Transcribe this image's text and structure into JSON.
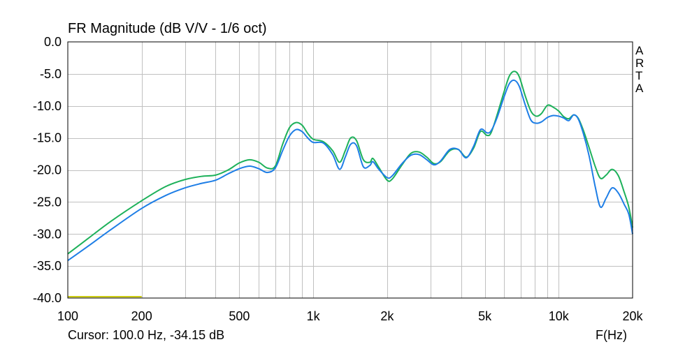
{
  "window": {
    "brand_letters": [
      "A",
      "R",
      "T",
      "A"
    ]
  },
  "cursor_readout": "Cursor: 100.0 Hz, -34.15 dB",
  "chart_data": {
    "type": "line",
    "title": "FR Magnitude (dB V/V - 1/6 oct)",
    "xlabel": "F(Hz)",
    "ylabel": "",
    "xscale": "log",
    "xlim": [
      100,
      20000
    ],
    "ylim": [
      -40,
      0
    ],
    "grid": true,
    "x_ticks": [
      {
        "value": 100,
        "label": "100"
      },
      {
        "value": 200,
        "label": "200"
      },
      {
        "value": 500,
        "label": "500"
      },
      {
        "value": 1000,
        "label": "1k"
      },
      {
        "value": 2000,
        "label": "2k"
      },
      {
        "value": 5000,
        "label": "5k"
      },
      {
        "value": 10000,
        "label": "10k"
      },
      {
        "value": 20000,
        "label": "20k"
      }
    ],
    "y_ticks": [
      {
        "value": 0,
        "label": "0.0"
      },
      {
        "value": -5,
        "label": "-5.0"
      },
      {
        "value": -10,
        "label": "-10.0"
      },
      {
        "value": -15,
        "label": "-15.0"
      },
      {
        "value": -20,
        "label": "-20.0"
      },
      {
        "value": -25,
        "label": "-25.0"
      },
      {
        "value": -30,
        "label": "-30.0"
      },
      {
        "value": -35,
        "label": "-35.0"
      },
      {
        "value": -40,
        "label": "-40.0"
      }
    ],
    "colors": {
      "grid": "#c0c0c0",
      "frame": "#000000",
      "green": "#1db15a",
      "blue": "#1e7ee6",
      "marker": "#c8c800"
    },
    "series": [
      {
        "color": "#1db15a",
        "points": [
          [
            100,
            -33.1
          ],
          [
            120,
            -30.8
          ],
          [
            150,
            -28.0
          ],
          [
            200,
            -24.8
          ],
          [
            250,
            -22.6
          ],
          [
            300,
            -21.5
          ],
          [
            350,
            -21.0
          ],
          [
            400,
            -20.8
          ],
          [
            450,
            -20.0
          ],
          [
            500,
            -18.9
          ],
          [
            550,
            -18.4
          ],
          [
            600,
            -18.8
          ],
          [
            650,
            -19.7
          ],
          [
            700,
            -19.4
          ],
          [
            750,
            -16.0
          ],
          [
            800,
            -13.4
          ],
          [
            850,
            -12.6
          ],
          [
            900,
            -13.0
          ],
          [
            950,
            -14.3
          ],
          [
            1000,
            -15.2
          ],
          [
            1100,
            -15.6
          ],
          [
            1200,
            -17.0
          ],
          [
            1280,
            -18.8
          ],
          [
            1350,
            -17.0
          ],
          [
            1420,
            -15.0
          ],
          [
            1500,
            -15.4
          ],
          [
            1600,
            -18.4
          ],
          [
            1700,
            -18.8
          ],
          [
            1750,
            -18.2
          ],
          [
            1850,
            -19.6
          ],
          [
            2000,
            -21.6
          ],
          [
            2100,
            -21.4
          ],
          [
            2300,
            -19.2
          ],
          [
            2500,
            -17.4
          ],
          [
            2700,
            -17.2
          ],
          [
            2900,
            -18.0
          ],
          [
            3100,
            -19.0
          ],
          [
            3300,
            -18.7
          ],
          [
            3600,
            -17.0
          ],
          [
            3900,
            -16.8
          ],
          [
            4200,
            -18.0
          ],
          [
            4500,
            -16.6
          ],
          [
            4800,
            -14.0
          ],
          [
            5100,
            -14.6
          ],
          [
            5300,
            -14.2
          ],
          [
            5600,
            -11.5
          ],
          [
            6000,
            -7.7
          ],
          [
            6300,
            -5.3
          ],
          [
            6600,
            -4.6
          ],
          [
            6900,
            -5.4
          ],
          [
            7300,
            -8.4
          ],
          [
            7700,
            -10.8
          ],
          [
            8100,
            -11.6
          ],
          [
            8500,
            -11.2
          ],
          [
            9000,
            -9.9
          ],
          [
            9500,
            -10.2
          ],
          [
            10000,
            -10.8
          ],
          [
            10500,
            -11.7
          ],
          [
            11000,
            -12.0
          ],
          [
            11500,
            -11.4
          ],
          [
            12000,
            -11.9
          ],
          [
            12600,
            -13.8
          ],
          [
            13300,
            -16.5
          ],
          [
            14100,
            -19.5
          ],
          [
            14800,
            -21.3
          ],
          [
            15600,
            -20.8
          ],
          [
            16500,
            -19.9
          ],
          [
            17500,
            -20.9
          ],
          [
            18500,
            -23.5
          ],
          [
            19300,
            -25.8
          ],
          [
            20000,
            -29.0
          ]
        ]
      },
      {
        "color": "#1e7ee6",
        "points": [
          [
            100,
            -34.15
          ],
          [
            120,
            -32.0
          ],
          [
            150,
            -29.3
          ],
          [
            200,
            -26.0
          ],
          [
            250,
            -24.0
          ],
          [
            300,
            -22.8
          ],
          [
            350,
            -22.1
          ],
          [
            400,
            -21.6
          ],
          [
            450,
            -20.6
          ],
          [
            500,
            -19.8
          ],
          [
            550,
            -19.4
          ],
          [
            600,
            -19.8
          ],
          [
            650,
            -20.4
          ],
          [
            700,
            -19.7
          ],
          [
            750,
            -17.0
          ],
          [
            800,
            -14.7
          ],
          [
            850,
            -13.7
          ],
          [
            900,
            -14.0
          ],
          [
            950,
            -15.0
          ],
          [
            1000,
            -15.7
          ],
          [
            1100,
            -15.8
          ],
          [
            1200,
            -17.6
          ],
          [
            1280,
            -19.9
          ],
          [
            1350,
            -18.0
          ],
          [
            1420,
            -16.0
          ],
          [
            1500,
            -16.2
          ],
          [
            1600,
            -19.5
          ],
          [
            1700,
            -19.3
          ],
          [
            1750,
            -18.7
          ],
          [
            1850,
            -19.9
          ],
          [
            2000,
            -21.2
          ],
          [
            2100,
            -20.9
          ],
          [
            2300,
            -19.0
          ],
          [
            2500,
            -17.7
          ],
          [
            2700,
            -17.6
          ],
          [
            2900,
            -18.4
          ],
          [
            3100,
            -19.2
          ],
          [
            3300,
            -18.6
          ],
          [
            3600,
            -16.8
          ],
          [
            3900,
            -16.8
          ],
          [
            4200,
            -18.1
          ],
          [
            4500,
            -16.3
          ],
          [
            4800,
            -13.7
          ],
          [
            5100,
            -14.2
          ],
          [
            5300,
            -13.9
          ],
          [
            5600,
            -11.9
          ],
          [
            6000,
            -8.5
          ],
          [
            6300,
            -6.5
          ],
          [
            6600,
            -6.0
          ],
          [
            6900,
            -6.9
          ],
          [
            7300,
            -9.8
          ],
          [
            7700,
            -12.2
          ],
          [
            8100,
            -12.7
          ],
          [
            8500,
            -12.5
          ],
          [
            9000,
            -11.8
          ],
          [
            9500,
            -11.5
          ],
          [
            10000,
            -11.6
          ],
          [
            10500,
            -11.9
          ],
          [
            11000,
            -12.3
          ],
          [
            11500,
            -11.4
          ],
          [
            12000,
            -12.0
          ],
          [
            12600,
            -14.3
          ],
          [
            13300,
            -17.8
          ],
          [
            14100,
            -22.7
          ],
          [
            14800,
            -25.8
          ],
          [
            15600,
            -24.4
          ],
          [
            16500,
            -22.8
          ],
          [
            17500,
            -23.6
          ],
          [
            18500,
            -25.4
          ],
          [
            19300,
            -26.9
          ],
          [
            20000,
            -30.0
          ]
        ]
      }
    ],
    "marker_segment": {
      "x": [
        100,
        200
      ],
      "y": -39.8
    }
  }
}
